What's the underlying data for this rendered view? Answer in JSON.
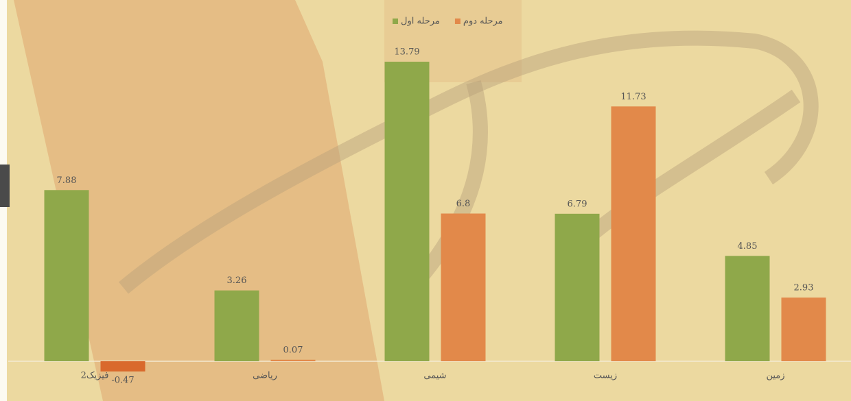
{
  "chart_data": {
    "type": "bar",
    "categories": [
      "فیزیک2",
      "ریاضی",
      "شیمی",
      "زیست",
      "زمین"
    ],
    "series": [
      {
        "name": "مرحله اول",
        "color": "#8fa84a",
        "values": [
          7.88,
          3.26,
          13.79,
          6.79,
          4.85
        ]
      },
      {
        "name": "مرحله دوم",
        "color": "#e2894a",
        "values": [
          -0.47,
          0.07,
          6.8,
          11.73,
          2.93
        ]
      }
    ]
  }
}
